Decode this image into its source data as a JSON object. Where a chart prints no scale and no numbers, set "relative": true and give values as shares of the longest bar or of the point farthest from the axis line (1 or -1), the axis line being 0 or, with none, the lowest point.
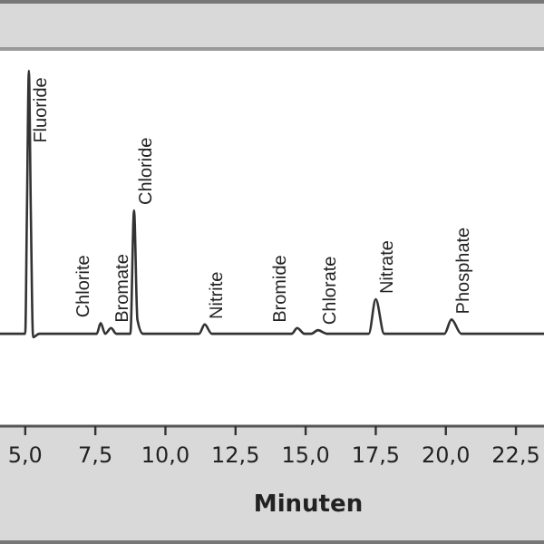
{
  "chart_data": {
    "type": "line",
    "relative": true,
    "xlabel": "Minuten",
    "color": "#333333",
    "xlim": [
      4.1,
      23.5
    ],
    "xticks": [
      {
        "value": 5,
        "label": "5,0"
      },
      {
        "value": 7.5,
        "label": "7,5"
      },
      {
        "value": 10,
        "label": "10,0"
      },
      {
        "value": 12.5,
        "label": "12,5"
      },
      {
        "value": 15,
        "label": "15,0"
      },
      {
        "value": 17.5,
        "label": "17,5"
      },
      {
        "value": 20,
        "label": "20,0"
      },
      {
        "value": 22.5,
        "label": "22,5"
      }
    ],
    "x": [
      4.1,
      5.0,
      5.06,
      5.13,
      5.2,
      5.28,
      5.5,
      7.55,
      7.69,
      7.85,
      8.06,
      8.25,
      8.75,
      8.88,
      9.0,
      9.2,
      11.2,
      11.4,
      11.65,
      14.5,
      14.7,
      14.95,
      15.2,
      15.44,
      15.75,
      17.25,
      17.5,
      17.8,
      19.95,
      20.2,
      20.55,
      23.5
    ],
    "values": [
      0.26,
      0.26,
      0.6,
      1.0,
      0.6,
      0.25,
      0.26,
      0.26,
      0.29,
      0.26,
      0.276,
      0.26,
      0.26,
      0.607,
      0.3,
      0.26,
      0.26,
      0.286,
      0.26,
      0.26,
      0.276,
      0.26,
      0.26,
      0.27,
      0.26,
      0.26,
      0.357,
      0.26,
      0.26,
      0.3,
      0.26,
      0.26
    ],
    "annotations": [
      {
        "text": "Fluoride",
        "x": 5.13,
        "y": 1.0
      },
      {
        "text": "Chlorite",
        "x": 7.69,
        "y": 0.29
      },
      {
        "text": "Bromate",
        "x": 8.06,
        "y": 0.276
      },
      {
        "text": "Chloride",
        "x": 8.88,
        "y": 0.607
      },
      {
        "text": "Nitrite",
        "x": 11.4,
        "y": 0.286
      },
      {
        "text": "Bromide",
        "x": 14.7,
        "y": 0.276
      },
      {
        "text": "Chlorate",
        "x": 15.44,
        "y": 0.27
      },
      {
        "text": "Nitrate",
        "x": 17.5,
        "y": 0.357
      },
      {
        "text": "Phosphate",
        "x": 20.2,
        "y": 0.3
      }
    ]
  }
}
